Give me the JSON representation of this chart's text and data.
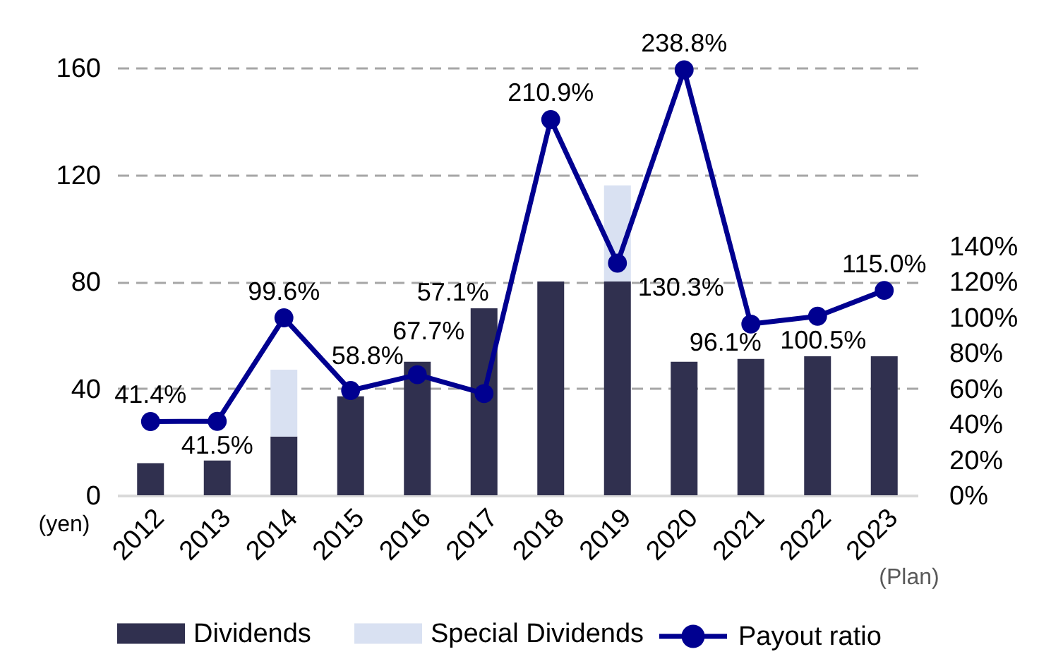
{
  "chart_data": {
    "type": "bar",
    "stacked": true,
    "ylabel": "(yen)",
    "categories": [
      "2012",
      "2013",
      "2014",
      "2015",
      "2016",
      "2017",
      "2018",
      "2019",
      "2020",
      "2021",
      "2022",
      "2023"
    ],
    "series": [
      {
        "name": "Dividends",
        "color": "#30304f",
        "values": [
          12,
          13,
          22,
          37,
          50,
          70,
          80,
          80,
          50,
          51,
          52,
          52
        ]
      },
      {
        "name": "Special Dividends",
        "color": "#d9e1f2",
        "values": [
          null,
          null,
          25,
          null,
          null,
          null,
          null,
          36,
          null,
          null,
          null,
          null
        ]
      },
      {
        "name": "Payout ratio",
        "type": "line",
        "axis": "y2",
        "color": "#000090",
        "marker": "circle",
        "values": [
          41.4,
          41.5,
          99.6,
          58.8,
          67.7,
          57.1,
          210.9,
          130.3,
          238.8,
          96.1,
          100.5,
          115.0
        ],
        "value_labels": [
          "41.4%",
          "41.5%",
          "99.6%",
          "58.8%",
          "67.7%",
          "57.1%",
          "210.9%",
          "130.3%",
          "238.8%",
          "96.1%",
          "100.5%",
          "115.0%"
        ]
      }
    ],
    "ylim": [
      0,
      160
    ],
    "yticks": [
      0,
      40,
      80,
      120,
      160
    ],
    "y2lim": [
      0,
      240
    ],
    "y2ticks": [
      {
        "value": 0,
        "label": "0%"
      },
      {
        "value": 20,
        "label": "20%"
      },
      {
        "value": 40,
        "label": "40%"
      },
      {
        "value": 60,
        "label": "60%"
      },
      {
        "value": 80,
        "label": "80%"
      },
      {
        "value": 100,
        "label": "100%"
      },
      {
        "value": 120,
        "label": "120%"
      },
      {
        "value": 140,
        "label": "140%"
      }
    ],
    "grid": "y",
    "legend": "bottom",
    "annotations": [
      "(Plan)"
    ]
  }
}
